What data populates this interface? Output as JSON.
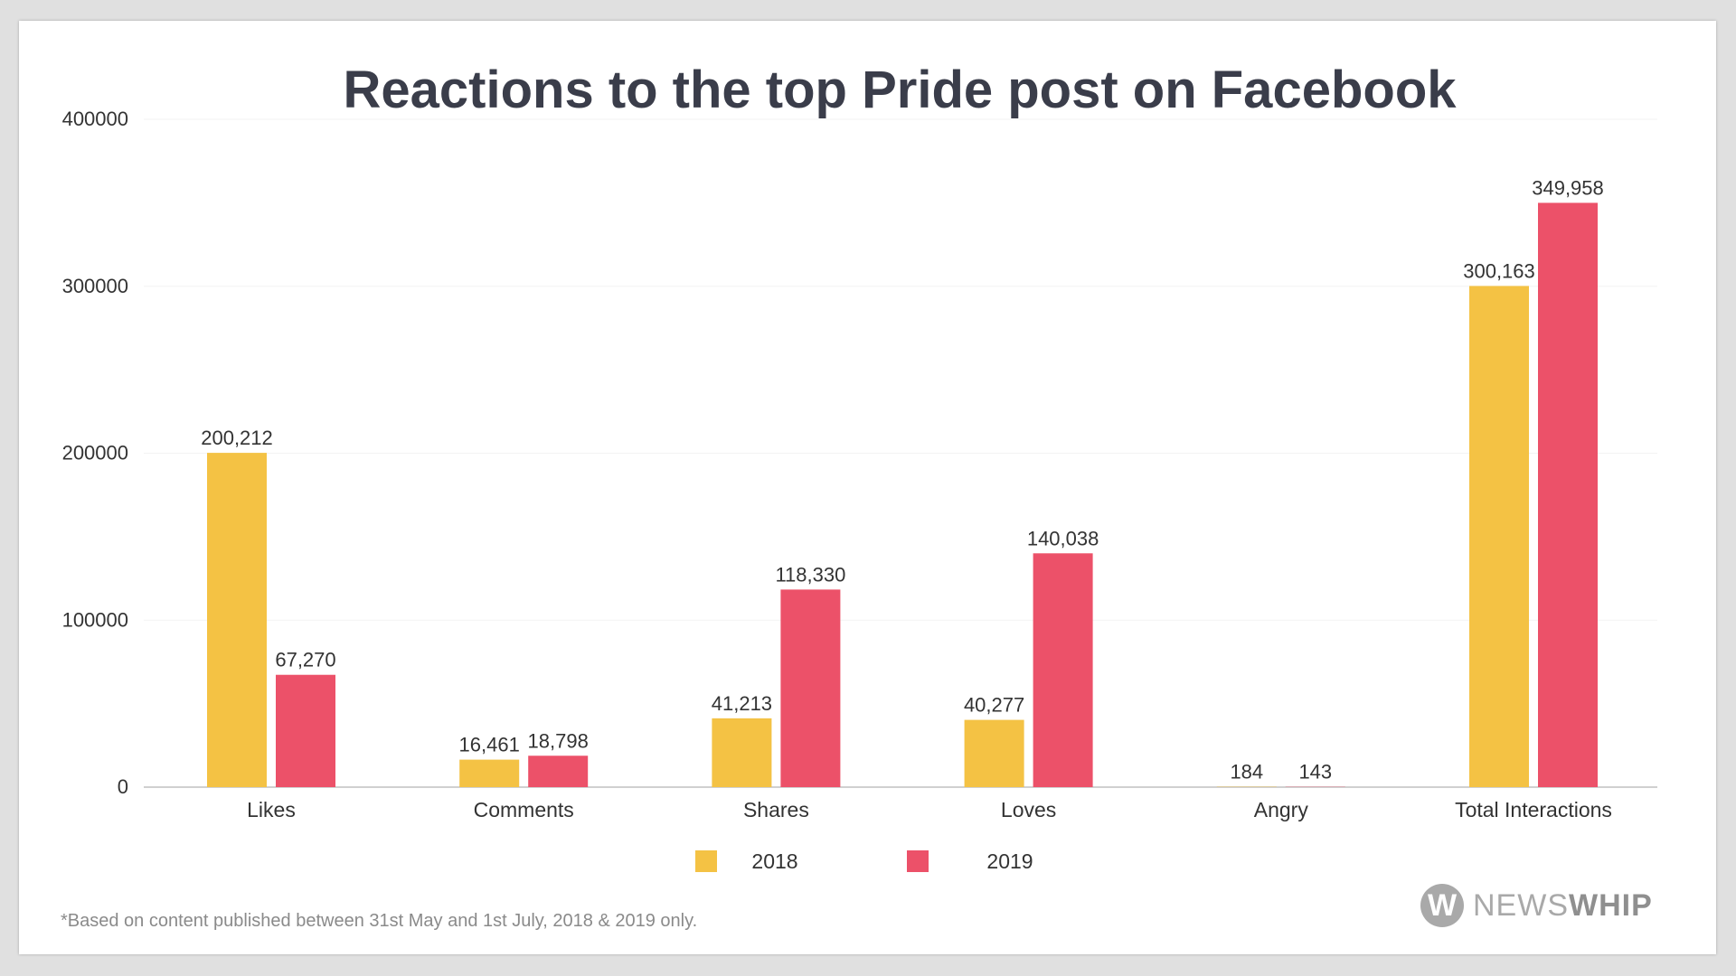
{
  "chart_data": {
    "type": "bar",
    "title": "Reactions to the top Pride post on Facebook",
    "categories": [
      "Likes",
      "Comments",
      "Shares",
      "Loves",
      "Angry",
      "Total Interactions"
    ],
    "series": [
      {
        "name": "2018",
        "color": "#f4c244",
        "values": [
          200212,
          16461,
          41213,
          40277,
          184,
          300163
        ],
        "labels": [
          "200,212",
          "16,461",
          "41,213",
          "40,277",
          "184",
          "300,163"
        ]
      },
      {
        "name": "2019",
        "color": "#ec5169",
        "values": [
          67270,
          18798,
          118330,
          140038,
          143,
          349958
        ],
        "labels": [
          "67,270",
          "18,798",
          "118,330",
          "140,038",
          "143",
          "349,958"
        ]
      }
    ],
    "yticks": [
      "0",
      "100000",
      "200000",
      "300000",
      "400000"
    ],
    "ylim": [
      0,
      400000
    ],
    "grid": true,
    "legend": "bottom"
  },
  "footnote": "*Based on content published between 31st May and 1st July, 2018 & 2019 only.",
  "logo": {
    "mark": "W",
    "text_light": "NEWS",
    "text_bold": "WHIP"
  }
}
